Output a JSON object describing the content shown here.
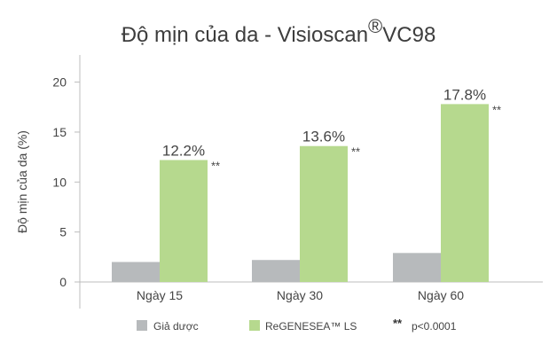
{
  "chart_data": {
    "type": "bar",
    "title": "Độ mịn của da - Visioscan",
    "title_symbol": "®",
    "title_suffix": "VC98",
    "ylabel": "Độ mịn của da (%)",
    "xlabel": "",
    "ylim": [
      0,
      22
    ],
    "yticks": [
      0,
      5,
      10,
      15,
      20
    ],
    "categories": [
      "Ngày 15",
      "Ngày 30",
      "Ngày 60"
    ],
    "series": [
      {
        "name": "Giả dược",
        "values": [
          2.0,
          2.2,
          2.9
        ],
        "color": "#b7babc"
      },
      {
        "name": "ReGENESEA™ LS",
        "values": [
          12.2,
          13.6,
          17.8
        ],
        "color": "#b6d98e",
        "data_labels": [
          "12.2%",
          "13.6%",
          "17.8%"
        ],
        "significance": [
          "**",
          "**",
          "**"
        ]
      }
    ],
    "legend": {
      "placement": "bottom",
      "items": [
        "Giả dược",
        "ReGENESEA™ LS"
      ],
      "note_symbol": "**",
      "note_text": "p<0.0001"
    },
    "grid": false,
    "axis_color": "#bcbcbc"
  }
}
